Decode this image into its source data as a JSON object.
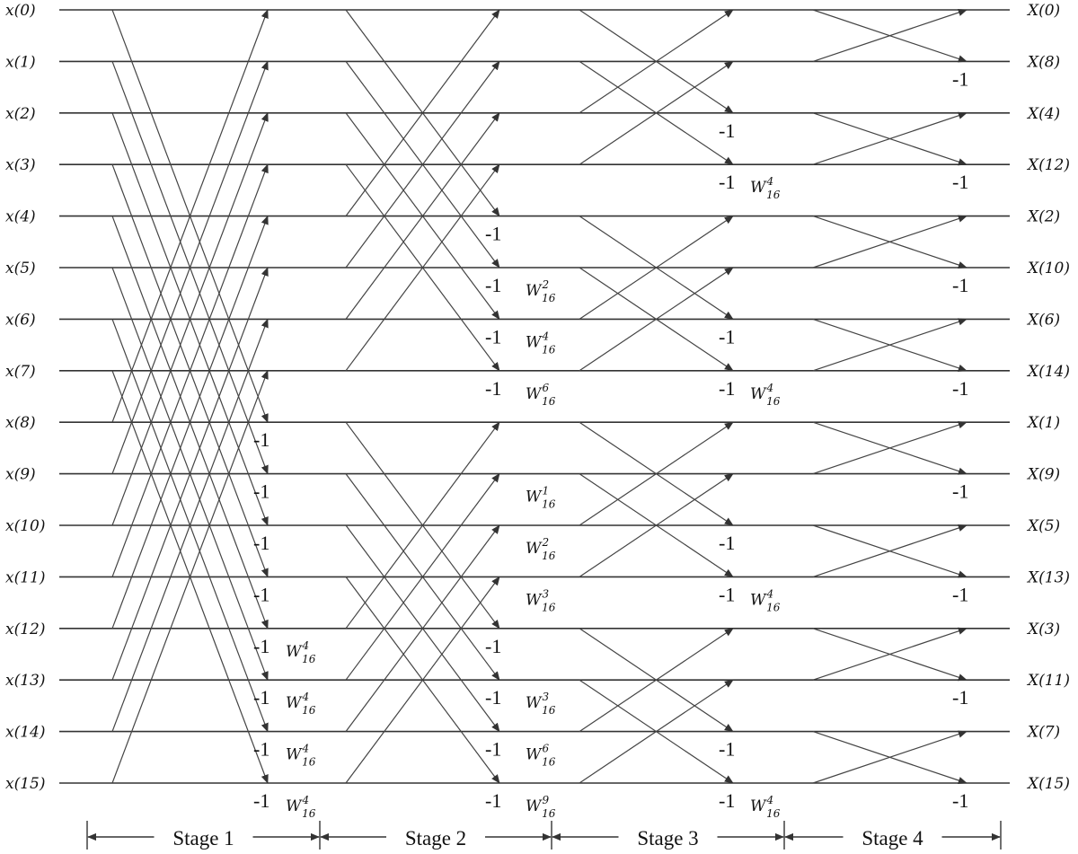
{
  "inputs": [
    "x(0)",
    "x(1)",
    "x(2)",
    "x(3)",
    "x(4)",
    "x(5)",
    "x(6)",
    "x(7)",
    "x(8)",
    "x(9)",
    "x(10)",
    "x(11)",
    "x(12)",
    "x(13)",
    "x(14)",
    "x(15)"
  ],
  "outputs": [
    "X(0)",
    "X(8)",
    "X(4)",
    "X(12)",
    "X(2)",
    "X(10)",
    "X(6)",
    "X(14)",
    "X(1)",
    "X(9)",
    "X(5)",
    "X(13)",
    "X(3)",
    "X(11)",
    "X(7)",
    "X(15)"
  ],
  "stages": [
    {
      "label": "Stage 1",
      "span": 8
    },
    {
      "label": "Stage 2",
      "span": 4
    },
    {
      "label": "Stage 3",
      "span": 2
    },
    {
      "label": "Stage 4",
      "span": 1
    }
  ],
  "negative_label": "-1",
  "twiddle_base": "W",
  "twiddle_n": "16",
  "twiddles": [
    {
      "stage": 1,
      "row": 12,
      "exp": "4"
    },
    {
      "stage": 1,
      "row": 13,
      "exp": "4"
    },
    {
      "stage": 1,
      "row": 14,
      "exp": "4"
    },
    {
      "stage": 1,
      "row": 15,
      "exp": "4"
    },
    {
      "stage": 2,
      "row": 5,
      "exp": "2"
    },
    {
      "stage": 2,
      "row": 6,
      "exp": "4"
    },
    {
      "stage": 2,
      "row": 7,
      "exp": "6"
    },
    {
      "stage": 2,
      "row": 9,
      "exp": "1"
    },
    {
      "stage": 2,
      "row": 10,
      "exp": "2"
    },
    {
      "stage": 2,
      "row": 11,
      "exp": "3"
    },
    {
      "stage": 2,
      "row": 13,
      "exp": "3"
    },
    {
      "stage": 2,
      "row": 14,
      "exp": "6"
    },
    {
      "stage": 2,
      "row": 15,
      "exp": "9"
    },
    {
      "stage": 3,
      "row": 3,
      "exp": "4"
    },
    {
      "stage": 3,
      "row": 7,
      "exp": "4"
    },
    {
      "stage": 3,
      "row": 11,
      "exp": "4"
    },
    {
      "stage": 3,
      "row": 15,
      "exp": "4"
    }
  ]
}
